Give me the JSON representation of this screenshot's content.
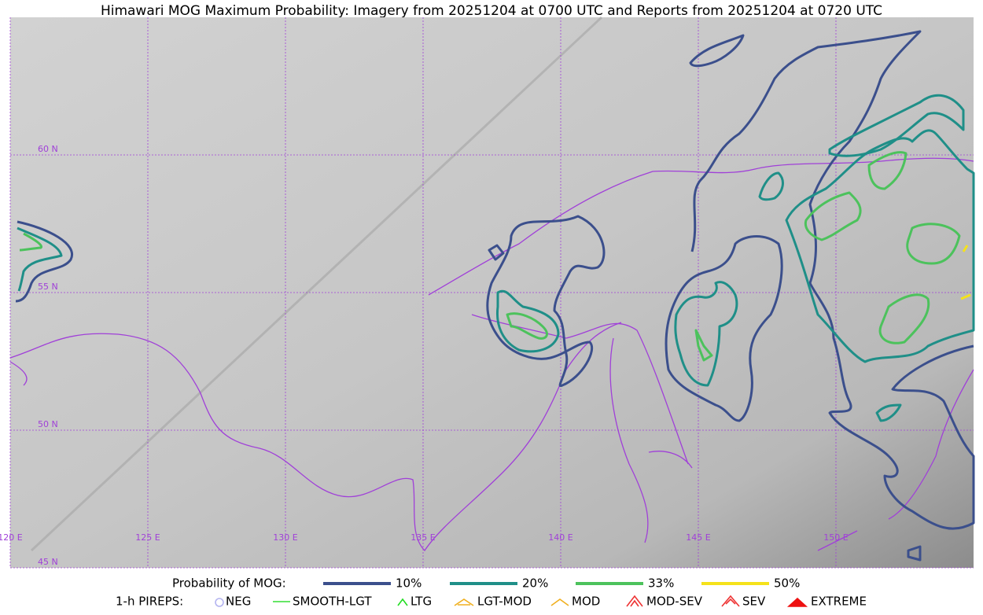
{
  "title": "Himawari MOG Maximum Probability: Imagery from 20251204 at 0700 UTC and Reports from 20251204 at 0720 UTC",
  "grid_labels": {
    "lat": [
      "60 N",
      "55 N",
      "50 N",
      "45 N"
    ],
    "lon": [
      "120 E",
      "125 E",
      "130 E",
      "135 E",
      "140 E",
      "145 E",
      "150 E"
    ]
  },
  "legend": {
    "probability": {
      "label": "Probability of MOG:",
      "items": [
        {
          "label": "10%",
          "color": "#3b4f8c"
        },
        {
          "label": "20%",
          "color": "#1f8f88"
        },
        {
          "label": "33%",
          "color": "#4cc25c"
        },
        {
          "label": "50%",
          "color": "#f5e21a"
        }
      ]
    },
    "pireps": {
      "label": "1-h PIREPS:",
      "items": [
        {
          "label": "NEG",
          "color": "#b4b4f0"
        },
        {
          "label": "SMOOTH-LGT",
          "color": "#33dd33"
        },
        {
          "label": "LTG",
          "color": "#22dd22"
        },
        {
          "label": "LGT-MOD",
          "color": "#f0b020"
        },
        {
          "label": "MOD",
          "color": "#f0b020"
        },
        {
          "label": "MOD-SEV",
          "color": "#ee3333"
        },
        {
          "label": "SEV",
          "color": "#ee3333"
        },
        {
          "label": "EXTREME",
          "color": "#ee1111"
        }
      ]
    }
  }
}
